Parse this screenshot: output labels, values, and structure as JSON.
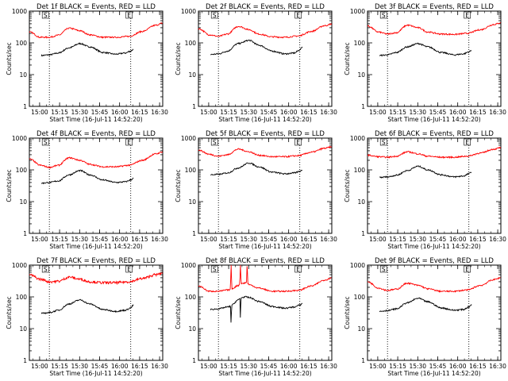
{
  "figure": {
    "x_axis_title": "Start Time (16-Jul-11 14:52:20)",
    "y_axis_title": "Counts/sec",
    "x_tick_labels": [
      "15:00",
      "15:15",
      "15:30",
      "15:45",
      "16:00",
      "16:15",
      "16:30"
    ],
    "y_tick_labels": [
      "1",
      "10",
      "100",
      "1000"
    ],
    "marker_letters": [
      "S",
      "E"
    ],
    "colors": {
      "events": "#000000",
      "lld": "#ff0000",
      "axes": "#000000",
      "background": "#ffffff"
    }
  },
  "chart_data": [
    {
      "type": "line",
      "title": "Det 1f BLACK = Events, RED = LLD",
      "xlabel": "Start Time (16-Jul-11 14:52:20)",
      "ylabel": "Counts/sec",
      "x_unit": "minutes after 14:52:20",
      "y_scale": "log",
      "ylim": [
        1,
        1000
      ],
      "xlim": [
        0,
        100
      ],
      "vlines_x": [
        15,
        76
      ],
      "series": [
        {
          "name": "Events",
          "color": "#000000",
          "x": [
            9,
            15,
            22,
            30,
            38,
            45,
            55,
            65,
            72,
            76,
            78
          ],
          "y": [
            40,
            42,
            48,
            70,
            95,
            75,
            50,
            44,
            48,
            55,
            62
          ]
        },
        {
          "name": "LLD",
          "color": "#ff0000",
          "x": [
            0,
            8,
            15,
            22,
            30,
            38,
            45,
            55,
            65,
            75,
            85,
            95,
            100
          ],
          "y": [
            220,
            150,
            150,
            175,
            290,
            240,
            180,
            150,
            150,
            160,
            230,
            360,
            420
          ]
        }
      ]
    },
    {
      "type": "line",
      "title": "Det 2f BLACK = Events, RED = LLD",
      "xlabel": "Start Time (16-Jul-11 14:52:20)",
      "ylabel": "Counts/sec",
      "x_unit": "minutes after 14:52:20",
      "y_scale": "log",
      "ylim": [
        1,
        1000
      ],
      "xlim": [
        0,
        100
      ],
      "vlines_x": [
        15,
        76
      ],
      "series": [
        {
          "name": "Events",
          "color": "#000000",
          "x": [
            9,
            15,
            22,
            30,
            38,
            45,
            55,
            65,
            72,
            76,
            78
          ],
          "y": [
            43,
            45,
            55,
            95,
            120,
            85,
            55,
            45,
            48,
            60,
            75
          ]
        },
        {
          "name": "LLD",
          "color": "#ff0000",
          "x": [
            0,
            8,
            15,
            22,
            30,
            38,
            45,
            55,
            65,
            75,
            85,
            95,
            100
          ],
          "y": [
            280,
            180,
            160,
            190,
            330,
            260,
            190,
            155,
            150,
            165,
            230,
            350,
            390
          ]
        }
      ]
    },
    {
      "type": "line",
      "title": "Det 3f BLACK = Events, RED = LLD",
      "xlabel": "Start Time (16-Jul-11 14:52:20)",
      "ylabel": "Counts/sec",
      "x_unit": "minutes after 14:52:20",
      "y_scale": "log",
      "ylim": [
        1,
        1000
      ],
      "xlim": [
        0,
        100
      ],
      "vlines_x": [
        15,
        76
      ],
      "series": [
        {
          "name": "Events",
          "color": "#000000",
          "x": [
            9,
            15,
            22,
            30,
            38,
            45,
            55,
            65,
            72,
            76,
            78
          ],
          "y": [
            40,
            42,
            50,
            75,
            95,
            75,
            50,
            42,
            45,
            52,
            58
          ]
        },
        {
          "name": "LLD",
          "color": "#ff0000",
          "x": [
            0,
            8,
            15,
            22,
            30,
            38,
            45,
            55,
            65,
            75,
            85,
            95,
            100
          ],
          "y": [
            340,
            220,
            190,
            210,
            360,
            300,
            220,
            190,
            185,
            200,
            260,
            380,
            430
          ]
        }
      ]
    },
    {
      "type": "line",
      "title": "Det 4f BLACK = Events, RED = LLD",
      "xlabel": "Start Time (16-Jul-11 14:52:20)",
      "ylabel": "Counts/sec",
      "x_unit": "minutes after 14:52:20",
      "y_scale": "log",
      "ylim": [
        1,
        1000
      ],
      "xlim": [
        0,
        100
      ],
      "vlines_x": [
        15,
        76
      ],
      "series": [
        {
          "name": "Events",
          "color": "#000000",
          "x": [
            9,
            15,
            22,
            30,
            38,
            45,
            55,
            65,
            72,
            76,
            78
          ],
          "y": [
            38,
            40,
            45,
            70,
            95,
            70,
            48,
            40,
            42,
            48,
            55
          ]
        },
        {
          "name": "LLD",
          "color": "#ff0000",
          "x": [
            0,
            8,
            15,
            22,
            30,
            38,
            45,
            55,
            65,
            75,
            85,
            95,
            100
          ],
          "y": [
            220,
            140,
            120,
            140,
            240,
            200,
            150,
            125,
            125,
            140,
            200,
            320,
            370
          ]
        }
      ]
    },
    {
      "type": "line",
      "title": "Det 5f BLACK = Events, RED = LLD",
      "xlabel": "Start Time (16-Jul-11 14:52:20)",
      "ylabel": "Counts/sec",
      "x_unit": "minutes after 14:52:20",
      "y_scale": "log",
      "ylim": [
        1,
        1000
      ],
      "xlim": [
        0,
        100
      ],
      "vlines_x": [
        15,
        76
      ],
      "series": [
        {
          "name": "Events",
          "color": "#000000",
          "x": [
            9,
            15,
            22,
            30,
            38,
            45,
            55,
            65,
            72,
            76,
            78
          ],
          "y": [
            70,
            72,
            80,
            115,
            165,
            125,
            85,
            75,
            80,
            90,
            100
          ]
        },
        {
          "name": "LLD",
          "color": "#ff0000",
          "x": [
            0,
            8,
            15,
            22,
            30,
            38,
            45,
            55,
            65,
            75,
            85,
            95,
            100
          ],
          "y": [
            420,
            310,
            270,
            300,
            450,
            370,
            290,
            260,
            260,
            280,
            360,
            480,
            530
          ]
        }
      ]
    },
    {
      "type": "line",
      "title": "Det 6f BLACK = Events, RED = LLD",
      "xlabel": "Start Time (16-Jul-11 14:52:20)",
      "ylabel": "Counts/sec",
      "x_unit": "minutes after 14:52:20",
      "y_scale": "log",
      "ylim": [
        1,
        1000
      ],
      "xlim": [
        0,
        100
      ],
      "vlines_x": [
        15,
        76
      ],
      "series": [
        {
          "name": "Events",
          "color": "#000000",
          "x": [
            9,
            15,
            22,
            30,
            38,
            45,
            55,
            65,
            72,
            76,
            78
          ],
          "y": [
            58,
            60,
            68,
            95,
            130,
            100,
            70,
            60,
            64,
            75,
            85
          ]
        },
        {
          "name": "LLD",
          "color": "#ff0000",
          "x": [
            0,
            8,
            15,
            22,
            30,
            38,
            45,
            55,
            65,
            75,
            85,
            95,
            100
          ],
          "y": [
            290,
            260,
            250,
            270,
            370,
            320,
            270,
            250,
            250,
            270,
            340,
            450,
            500
          ]
        }
      ]
    },
    {
      "type": "line",
      "title": "Det 7f BLACK = Events, RED = LLD",
      "xlabel": "Start Time (16-Jul-11 14:52:20)",
      "ylabel": "Counts/sec",
      "x_unit": "minutes after 14:52:20",
      "y_scale": "log",
      "ylim": [
        1,
        1000
      ],
      "xlim": [
        0,
        100
      ],
      "vlines_x": [
        15,
        76
      ],
      "series": [
        {
          "name": "Events",
          "color": "#000000",
          "x": [
            9,
            15,
            22,
            30,
            38,
            45,
            55,
            65,
            72,
            76,
            78
          ],
          "y": [
            30,
            32,
            38,
            60,
            80,
            60,
            40,
            35,
            38,
            45,
            55
          ]
        },
        {
          "name": "LLD",
          "color": "#ff0000",
          "x": [
            0,
            8,
            15,
            22,
            30,
            38,
            45,
            55,
            65,
            75,
            85,
            95,
            100
          ],
          "y": [
            500,
            360,
            300,
            310,
            420,
            360,
            300,
            280,
            280,
            300,
            380,
            500,
            560
          ]
        }
      ]
    },
    {
      "type": "line",
      "title": "Det 8f BLACK = Events, RED = LLD",
      "xlabel": "Start Time (16-Jul-11 14:52:20)",
      "ylabel": "Counts/sec",
      "x_unit": "minutes after 14:52:20",
      "y_scale": "log",
      "ylim": [
        1,
        1000
      ],
      "xlim": [
        0,
        100
      ],
      "vlines_x": [
        15,
        76
      ],
      "series": [
        {
          "name": "Events",
          "color": "#000000",
          "x": [
            9,
            15,
            22,
            24,
            24.5,
            25,
            30,
            31,
            31.5,
            32,
            36,
            38,
            45,
            55,
            65,
            72,
            76,
            78
          ],
          "y": [
            40,
            42,
            48,
            50,
            12,
            55,
            80,
            90,
            14,
            95,
            100,
            95,
            72,
            50,
            44,
            48,
            55,
            62
          ]
        },
        {
          "name": "LLD",
          "color": "#ff0000",
          "x": [
            0,
            8,
            15,
            22,
            24,
            24.5,
            25,
            30,
            31,
            31.5,
            32,
            36,
            36.5,
            37,
            38,
            45,
            55,
            65,
            75,
            85,
            95,
            100
          ],
          "y": [
            220,
            150,
            150,
            165,
            170,
            1000,
            180,
            230,
            250,
            1000,
            260,
            280,
            1000,
            270,
            240,
            190,
            150,
            150,
            160,
            220,
            340,
            400
          ]
        }
      ]
    },
    {
      "type": "line",
      "title": "Det 9f BLACK = Events, RED = LLD",
      "xlabel": "Start Time (16-Jul-11 14:52:20)",
      "ylabel": "Counts/sec",
      "x_unit": "minutes after 14:52:20",
      "y_scale": "log",
      "ylim": [
        1,
        1000
      ],
      "xlim": [
        0,
        100
      ],
      "vlines_x": [
        15,
        76
      ],
      "series": [
        {
          "name": "Events",
          "color": "#000000",
          "x": [
            9,
            15,
            22,
            30,
            38,
            45,
            55,
            65,
            72,
            76,
            78
          ],
          "y": [
            35,
            37,
            42,
            65,
            90,
            70,
            45,
            38,
            40,
            48,
            56
          ]
        },
        {
          "name": "LLD",
          "color": "#ff0000",
          "x": [
            0,
            8,
            15,
            22,
            30,
            38,
            45,
            55,
            65,
            75,
            85,
            95,
            100
          ],
          "y": [
            300,
            190,
            160,
            175,
            270,
            230,
            180,
            150,
            150,
            165,
            230,
            350,
            400
          ]
        }
      ]
    }
  ]
}
